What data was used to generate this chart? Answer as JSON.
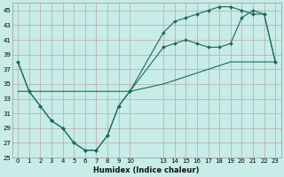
{
  "xlabel": "Humidex (Indice chaleur)",
  "bg_color": "#c8ece8",
  "grid_color": "#b8a8a8",
  "line_color": "#1a6b5a",
  "xlim": [
    -0.5,
    23.5
  ],
  "ylim": [
    25,
    46
  ],
  "xticks": [
    0,
    1,
    2,
    3,
    4,
    5,
    6,
    7,
    8,
    9,
    10,
    13,
    14,
    15,
    16,
    17,
    18,
    19,
    20,
    21,
    22,
    23
  ],
  "yticks": [
    25,
    27,
    29,
    31,
    33,
    35,
    37,
    39,
    41,
    43,
    45
  ],
  "series1_x": [
    0,
    1,
    2,
    3,
    4,
    5,
    6,
    7,
    8,
    9,
    10,
    13,
    14,
    15,
    16,
    17,
    18,
    19,
    20,
    21,
    22,
    23
  ],
  "series1_y": [
    38,
    34,
    32,
    30,
    29,
    27,
    26,
    26,
    28,
    32,
    34,
    40,
    40.5,
    41,
    40.5,
    40,
    40,
    40.5,
    44,
    45,
    44.5,
    38
  ],
  "series2_x": [
    0,
    1,
    2,
    3,
    4,
    5,
    6,
    7,
    8,
    9,
    10,
    13,
    14,
    15,
    16,
    17,
    18,
    19,
    20,
    21,
    22,
    23
  ],
  "series2_y": [
    34,
    34,
    34,
    34,
    34,
    34,
    34,
    34,
    34,
    34,
    34,
    35,
    35.5,
    36,
    36.5,
    37,
    37.5,
    38,
    38,
    38,
    38,
    38
  ],
  "series3_x": [
    0,
    1,
    2,
    3,
    4,
    5,
    6,
    7,
    8,
    9,
    10,
    13,
    14,
    15,
    16,
    17,
    18,
    19,
    20,
    21,
    22,
    23
  ],
  "series3_y": [
    38,
    34,
    32,
    30,
    29,
    27,
    26,
    26,
    28,
    32,
    34,
    42,
    43.5,
    44,
    44.5,
    45,
    45.5,
    45.5,
    45,
    44.5,
    44.5,
    38
  ],
  "marker_x1": [
    0,
    1,
    2,
    3,
    4,
    5,
    6,
    7,
    8,
    9,
    10,
    13,
    14,
    15,
    16,
    17,
    18,
    19,
    20,
    21,
    22,
    23
  ],
  "marker_x3": [
    13,
    14,
    15,
    16,
    17,
    18,
    19,
    20,
    21,
    22,
    23
  ]
}
